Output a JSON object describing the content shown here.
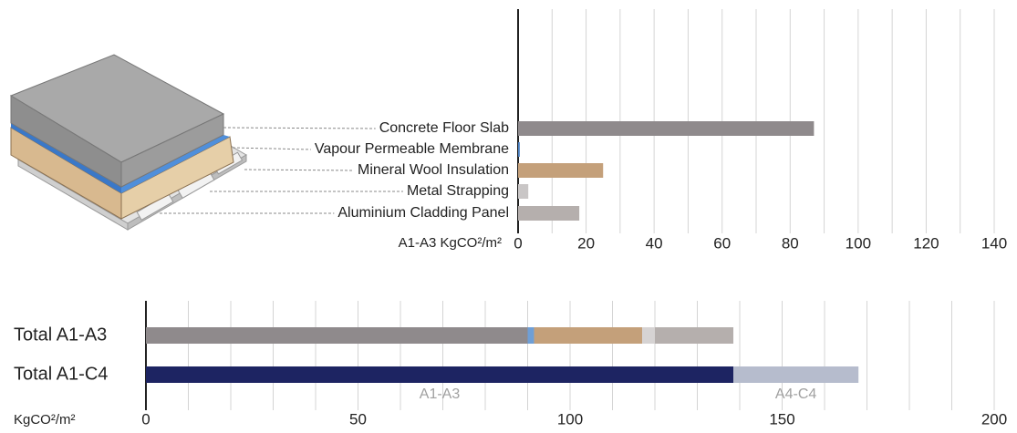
{
  "chart_data": [
    {
      "type": "hbar",
      "categories": [
        "Concrete Floor Slab",
        "Vapour Permeable Membrane",
        "Mineral Wool Insulation",
        "Metal Strapping",
        "Aluminium Cladding Panel"
      ],
      "values": [
        87,
        0.5,
        25,
        3,
        18
      ],
      "colors": [
        "#8f8a8c",
        "#4a7fc1",
        "#c4a07a",
        "#c9c6c6",
        "#b5afad"
      ],
      "xlabel": "A1-A3 KgCO²/m²",
      "xlim": [
        0,
        140
      ],
      "xticks": [
        0,
        20,
        40,
        60,
        80,
        100,
        120,
        140
      ],
      "minor_xticks": [
        10,
        30,
        50,
        70,
        90,
        110,
        130
      ],
      "grid": true
    },
    {
      "type": "stacked_hbar",
      "categories": [
        "Total A1-A3",
        "Total A1-C4"
      ],
      "series": [
        {
          "color": "#8f8a8c",
          "values": [
            90,
            null
          ]
        },
        {
          "color": "#6f9fd6",
          "values": [
            1.5,
            null
          ]
        },
        {
          "color": "#c4a07a",
          "values": [
            25.5,
            null
          ]
        },
        {
          "color": "#d6d3d3",
          "values": [
            3,
            null
          ]
        },
        {
          "color": "#b5afad",
          "values": [
            18.5,
            null
          ]
        },
        {
          "name": "A1-A3",
          "color": "#1d2462",
          "values": [
            null,
            138.5
          ]
        },
        {
          "name": "A4-C4",
          "color": "#b6bccd",
          "values": [
            null,
            29.5
          ]
        }
      ],
      "xlabel": "KgCO²/m²",
      "xlim": [
        0,
        200
      ],
      "xticks": [
        0,
        50,
        100,
        150,
        200
      ],
      "minor_xticks": [
        10,
        20,
        30,
        40,
        60,
        70,
        80,
        90,
        110,
        120,
        130,
        140,
        160,
        170,
        180,
        190
      ],
      "grid": true
    }
  ]
}
